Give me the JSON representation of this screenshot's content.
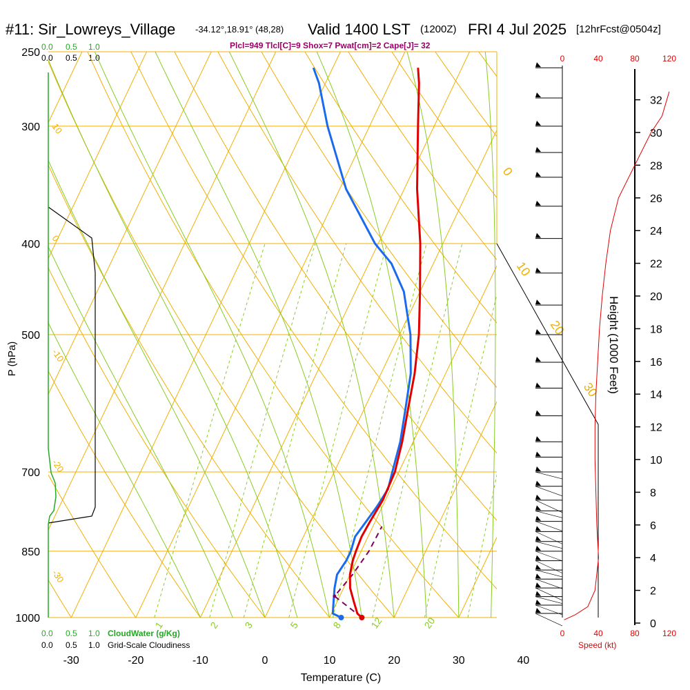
{
  "header": {
    "station": "#11: Sir_Lowreys_Village",
    "coords": "-34.12°,18.91° (48,28)",
    "valid": "Valid 1400 LST",
    "utc": "(1200Z)",
    "date": "FRI 4 Jul 2025",
    "forecast": "[12hrFcst@0504z]",
    "indices": "Plcl=949 Tlcl[C]=9 Shox=7 Pwat[cm]=2 Cape[J]= 32"
  },
  "labels": {
    "xlabel": "Temperature (C)",
    "ylabel": "P (hPa)",
    "height_label": "Height (1000 Feet)",
    "speed_label": "Speed (kt)",
    "cloudwater_label": "CloudWater (g/Kg)",
    "cloudiness_label": "Grid-Scale Cloudiness"
  },
  "colors": {
    "isotherm": "#f0b000",
    "dry_adiabat": "#88cc22",
    "moist_adiabat": "#88cc22",
    "mixing_ratio": "#88cc22",
    "temperature": "#e00000",
    "dewpoint": "#1a6aee",
    "parcel": "#800060",
    "cloud": "#22aa22",
    "speed": "#e00000",
    "indices": "#990066"
  },
  "chart_data": {
    "type": "line",
    "title": "#11: Sir_Lowreys_Village",
    "x_axis": {
      "label": "Temperature (C)",
      "ticks": [
        -30,
        -20,
        -10,
        0,
        10,
        20,
        30,
        40
      ]
    },
    "y_axis": {
      "label": "P (hPa)",
      "scale": "log",
      "ticks": [
        250,
        300,
        400,
        500,
        700,
        850,
        1000
      ]
    },
    "isotherm_labels": [
      {
        "value": "10",
        "side": "left"
      },
      {
        "value": "0",
        "side": "left"
      },
      {
        "value": "-10",
        "side": "left"
      },
      {
        "value": "-20",
        "side": "left"
      },
      {
        "value": "-30",
        "side": "left"
      },
      {
        "value": "0",
        "side": "right"
      },
      {
        "value": "10",
        "side": "right"
      },
      {
        "value": "20",
        "side": "right"
      },
      {
        "value": "30",
        "side": "right"
      }
    ],
    "mixing_ratio_labels": [
      "1",
      "2",
      "3",
      "5",
      "8",
      "12",
      "20"
    ],
    "temperature": [
      {
        "p": 1000,
        "t": 15.0
      },
      {
        "p": 990,
        "t": 14.0
      },
      {
        "p": 960,
        "t": 12.5
      },
      {
        "p": 930,
        "t": 11.0
      },
      {
        "p": 900,
        "t": 10.0
      },
      {
        "p": 870,
        "t": 9.4
      },
      {
        "p": 850,
        "t": 9.2
      },
      {
        "p": 820,
        "t": 9.0
      },
      {
        "p": 790,
        "t": 9.2
      },
      {
        "p": 750,
        "t": 9.6
      },
      {
        "p": 700,
        "t": 9.4
      },
      {
        "p": 650,
        "t": 8.3
      },
      {
        "p": 600,
        "t": 6.8
      },
      {
        "p": 550,
        "t": 5.2
      },
      {
        "p": 500,
        "t": 3.0
      },
      {
        "p": 450,
        "t": 0.0
      },
      {
        "p": 400,
        "t": -3.5
      },
      {
        "p": 350,
        "t": -8.0
      },
      {
        "p": 300,
        "t": -12.5
      },
      {
        "p": 270,
        "t": -15.5
      },
      {
        "p": 260,
        "t": -16.8
      }
    ],
    "dewpoint": [
      {
        "p": 1000,
        "t": 11.8
      },
      {
        "p": 990,
        "t": 10.2
      },
      {
        "p": 960,
        "t": 9.4
      },
      {
        "p": 930,
        "t": 8.6
      },
      {
        "p": 900,
        "t": 8.0
      },
      {
        "p": 870,
        "t": 8.4
      },
      {
        "p": 850,
        "t": 8.4
      },
      {
        "p": 820,
        "t": 8.0
      },
      {
        "p": 790,
        "t": 8.6
      },
      {
        "p": 760,
        "t": 9.2
      },
      {
        "p": 730,
        "t": 9.6
      },
      {
        "p": 700,
        "t": 9.0
      },
      {
        "p": 650,
        "t": 8.0
      },
      {
        "p": 600,
        "t": 6.4
      },
      {
        "p": 550,
        "t": 4.6
      },
      {
        "p": 500,
        "t": 1.7
      },
      {
        "p": 450,
        "t": -2.5
      },
      {
        "p": 420,
        "t": -6.5
      },
      {
        "p": 400,
        "t": -10.5
      },
      {
        "p": 350,
        "t": -19.0
      },
      {
        "p": 300,
        "t": -26.5
      },
      {
        "p": 270,
        "t": -31.0
      },
      {
        "p": 260,
        "t": -33.0
      }
    ],
    "parcel": [
      {
        "p": 1000,
        "t": 15.0
      },
      {
        "p": 949,
        "t": 9.2
      },
      {
        "p": 900,
        "t": 10.4
      },
      {
        "p": 850,
        "t": 11.2
      },
      {
        "p": 800,
        "t": 11.4
      }
    ],
    "height_ticks_kft": [
      0,
      2,
      4,
      6,
      8,
      10,
      12,
      14,
      16,
      18,
      20,
      22,
      24,
      26,
      28,
      30,
      32
    ],
    "speed_ticks_kt": [
      "0",
      "40",
      "80",
      "120"
    ],
    "cloud_ticks": [
      "0.0",
      "0.5",
      "1.0"
    ],
    "wind_speed_profile": [
      {
        "h": 0.2,
        "s": 2
      },
      {
        "h": 0.5,
        "s": 14
      },
      {
        "h": 1.0,
        "s": 28
      },
      {
        "h": 2.0,
        "s": 36
      },
      {
        "h": 4.0,
        "s": 40
      },
      {
        "h": 6.0,
        "s": 38
      },
      {
        "h": 8.0,
        "s": 37
      },
      {
        "h": 10.0,
        "s": 36
      },
      {
        "h": 12.0,
        "s": 36
      },
      {
        "h": 14.0,
        "s": 37
      },
      {
        "h": 16.0,
        "s": 39
      },
      {
        "h": 18.0,
        "s": 41
      },
      {
        "h": 20.0,
        "s": 44
      },
      {
        "h": 22.0,
        "s": 48
      },
      {
        "h": 24.0,
        "s": 53
      },
      {
        "h": 26.0,
        "s": 62
      },
      {
        "h": 28.0,
        "s": 80
      },
      {
        "h": 30.0,
        "s": 98
      },
      {
        "h": 31.0,
        "s": 110
      },
      {
        "h": 32.5,
        "s": 118
      }
    ],
    "wind_barb_pressures": [
      260,
      280,
      300,
      320,
      340,
      365,
      395,
      430,
      465,
      500,
      535,
      570,
      610,
      650,
      675,
      700,
      725,
      750,
      770,
      790,
      810,
      830,
      850,
      870,
      890,
      910,
      930,
      950,
      970,
      990
    ]
  }
}
